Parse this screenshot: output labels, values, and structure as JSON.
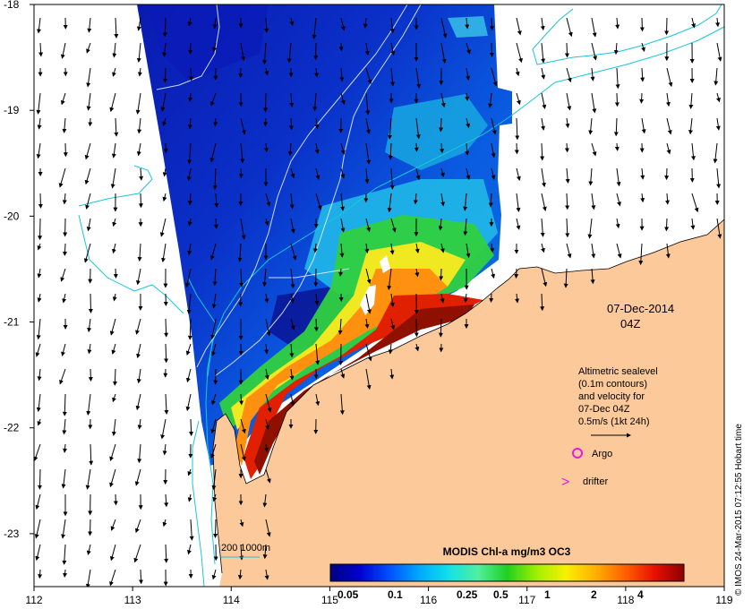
{
  "map": {
    "region_lon_range": [
      112,
      119
    ],
    "region_lat_range": [
      -23.5,
      -18
    ],
    "x_ticks": [
      "112",
      "113",
      "114",
      "115",
      "116",
      "117",
      "118",
      "119"
    ],
    "y_ticks": [
      "-18",
      "-19",
      "-20",
      "-21",
      "-22",
      "-23"
    ],
    "colors": {
      "land": "#fcc99a",
      "no_data": "#ffffff",
      "bathymetry_contour": "#19c7d6",
      "sealevel_contour": "#e8f4ff",
      "vectors": "#000000",
      "argo_marker": "#e020e0",
      "drifter_marker": "#e020e0"
    }
  },
  "annotations": {
    "date": "07-Dec-2014",
    "time": "04Z",
    "legend_lines": [
      "Altimetric sealevel",
      "(0.1m contours)",
      "and velocity for",
      "07-Dec 04Z",
      "0.5m/s (1kt 24h)"
    ],
    "argo_label": "Argo",
    "drifter_label": "drifter",
    "drifter_symbol": ">",
    "depth_legend": "200  1000m",
    "credit": "© IMOS 24-Mar-2015 07:12:55 Hobart time"
  },
  "colorbar": {
    "title": "MODIS Chl-a mg/m3 OC3",
    "tick_labels": [
      "0.05",
      "0.1",
      "0.25",
      "0.5",
      "1",
      "2",
      "4"
    ],
    "gradient_colors": [
      "#00007f",
      "#0000d0",
      "#0050ff",
      "#00a8ff",
      "#10e0e8",
      "#50f0a0",
      "#20d020",
      "#a0f000",
      "#f8f000",
      "#ffb000",
      "#ff6000",
      "#e81000",
      "#8b0000"
    ]
  }
}
